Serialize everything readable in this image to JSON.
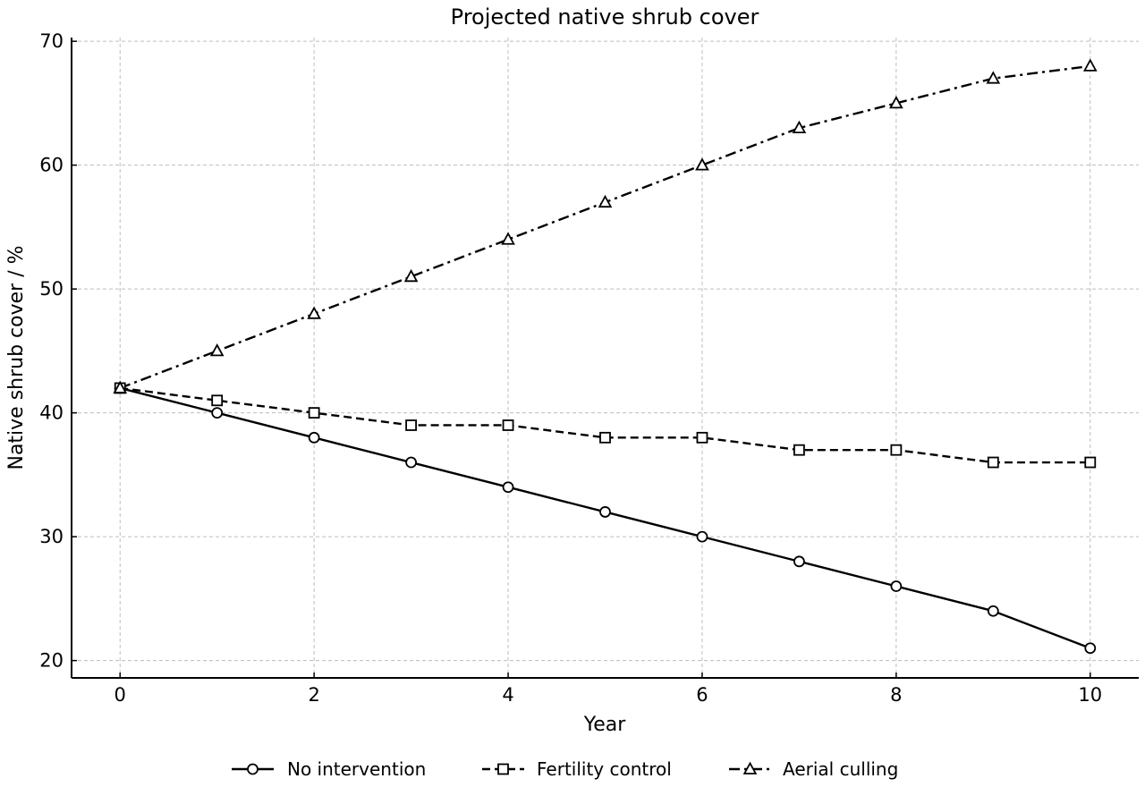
{
  "chart_data": {
    "type": "line",
    "title": "Projected native shrub cover",
    "xlabel": "Year",
    "ylabel": "Native shrub cover / %",
    "xlim": [
      -0.5,
      10.5
    ],
    "ylim": [
      18.6,
      70.3
    ],
    "x_ticks": [
      0,
      2,
      4,
      6,
      8,
      10
    ],
    "y_ticks": [
      20,
      30,
      40,
      50,
      60,
      70
    ],
    "grid": true,
    "legend_position": "bottom-center",
    "x": [
      0,
      1,
      2,
      3,
      4,
      5,
      6,
      7,
      8,
      9,
      10
    ],
    "series": [
      {
        "name": "No intervention",
        "values": [
          42,
          40,
          38,
          36,
          34,
          32,
          30,
          28,
          26,
          24,
          21
        ],
        "marker": "circle",
        "line_style": "solid",
        "color": "#000000"
      },
      {
        "name": "Fertility control",
        "values": [
          42,
          41,
          40,
          39,
          39,
          38,
          38,
          37,
          37,
          36,
          36
        ],
        "marker": "square",
        "line_style": "dashed",
        "color": "#000000"
      },
      {
        "name": "Aerial culling",
        "values": [
          42,
          45,
          48,
          51,
          54,
          57,
          60,
          63,
          65,
          67,
          68
        ],
        "marker": "triangle",
        "line_style": "dashdot",
        "color": "#000000"
      }
    ]
  }
}
